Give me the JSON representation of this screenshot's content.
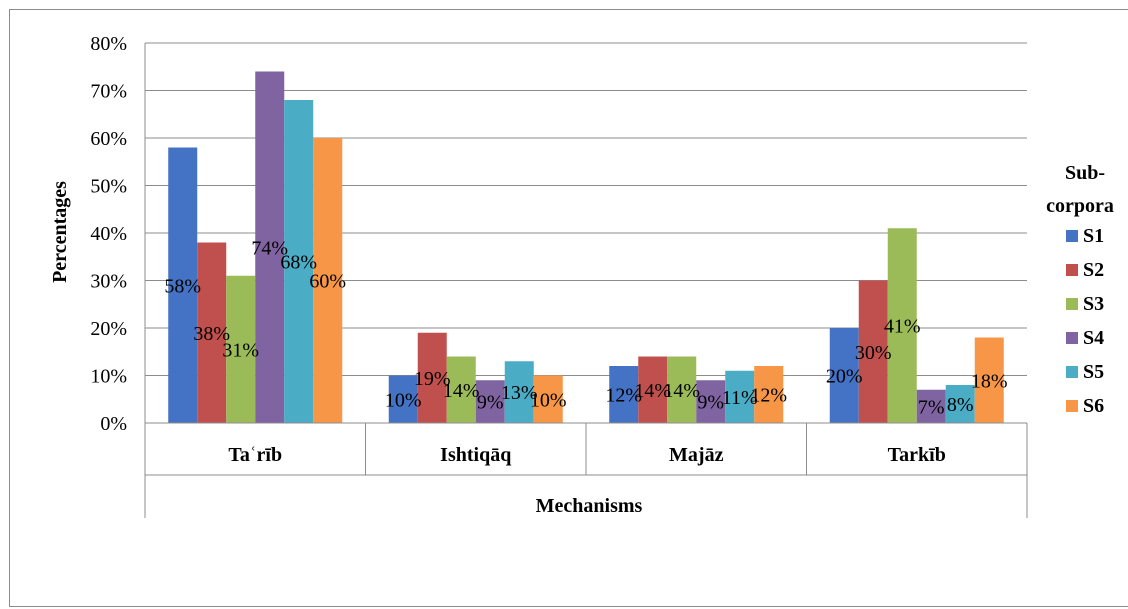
{
  "chart_data": {
    "type": "bar",
    "categories": [
      "Taʿrīb",
      "Ishtiqāq",
      "Majāz",
      "Tarkīb"
    ],
    "xlabel": "Mechanisms",
    "ylabel": "Percentages",
    "ylim": [
      0,
      80
    ],
    "yticks": [
      "0%",
      "10%",
      "20%",
      "30%",
      "40%",
      "50%",
      "60%",
      "70%",
      "80%"
    ],
    "grid": true,
    "legend_title": "Sub-corpora",
    "legend_position": "right",
    "series": [
      {
        "name": "S1",
        "color": "#4472c4",
        "values": [
          58,
          10,
          12,
          20
        ],
        "labels": [
          "58%",
          "10%",
          "12%",
          "20%"
        ]
      },
      {
        "name": "S2",
        "color": "#c0504d",
        "values": [
          38,
          19,
          14,
          30
        ],
        "labels": [
          "38%",
          "19%",
          "14%",
          "30%"
        ]
      },
      {
        "name": "S3",
        "color": "#9bbb59",
        "values": [
          31,
          14,
          14,
          41
        ],
        "labels": [
          "31%",
          "14%",
          "14%",
          "41%"
        ]
      },
      {
        "name": "S4",
        "color": "#8064a2",
        "values": [
          74,
          9,
          9,
          7
        ],
        "labels": [
          "74%",
          "9%",
          "9%",
          "7%"
        ]
      },
      {
        "name": "S5",
        "color": "#4bacc6",
        "values": [
          68,
          13,
          11,
          8
        ],
        "labels": [
          "68%",
          "13%",
          "11%",
          "8%"
        ]
      },
      {
        "name": "S6",
        "color": "#f79646",
        "values": [
          60,
          10,
          12,
          18
        ],
        "labels": [
          "60%",
          "10%",
          "12%",
          "18%"
        ]
      }
    ]
  }
}
